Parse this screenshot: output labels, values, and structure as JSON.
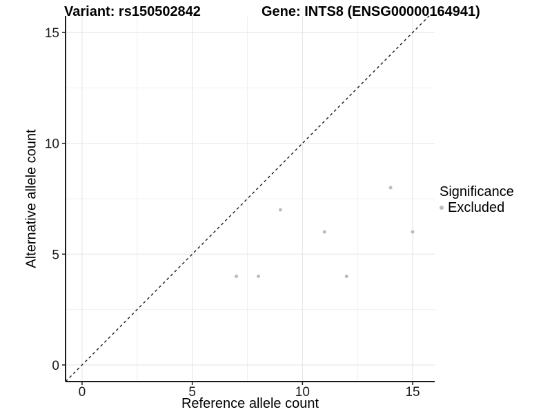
{
  "titles": {
    "variant": "Variant: rs150502842",
    "gene": "Gene: INTS8 (ENSG00000164941)"
  },
  "axes": {
    "x_label": "Reference allele count",
    "y_label": "Alternative allele count"
  },
  "legend": {
    "title": "Significance",
    "items": [
      {
        "label": "Excluded",
        "color": "#bcbcbc"
      }
    ],
    "position": "right"
  },
  "colors": {
    "background": "#ffffff",
    "axis_line": "#1a1a1a",
    "tick_mark": "#1a1a1a",
    "tick_label": "#1a1a1a",
    "major_gridline": "#e3e3e3",
    "minor_gridline": "#f0f0f0",
    "identity_line": "#1a1a1a",
    "point": "#bcbcbc"
  },
  "chart_data": {
    "type": "scatter",
    "title": "Variant: rs150502842 | Gene: INTS8 (ENSG00000164941)",
    "xlabel": "Reference allele count",
    "ylabel": "Alternative allele count",
    "x_ticks": [
      0,
      5,
      10,
      15
    ],
    "y_ticks": [
      0,
      5,
      10,
      15
    ],
    "xlim": [
      -0.75,
      16.0
    ],
    "ylim": [
      -0.75,
      15.75
    ],
    "grid": "major and minor gridlines, light grey on white",
    "legend_position": "right",
    "reference_line": {
      "kind": "identity y=x",
      "style": "dashed",
      "color": "#1a1a1a"
    },
    "series": [
      {
        "name": "Excluded",
        "color": "#bcbcbc",
        "points": [
          [
            7,
            4
          ],
          [
            8,
            4
          ],
          [
            9,
            7
          ],
          [
            11,
            6
          ],
          [
            12,
            4
          ],
          [
            14,
            8
          ],
          [
            15,
            6
          ]
        ]
      }
    ]
  }
}
